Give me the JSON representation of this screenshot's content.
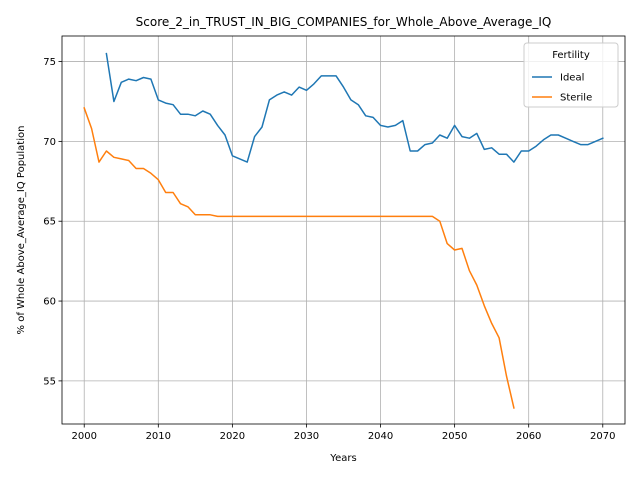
{
  "chart_data": {
    "type": "line",
    "title": "Score_2_in_TRUST_IN_BIG_COMPANIES_for_Whole_Above_Average_IQ",
    "xlabel": "Years",
    "ylabel": "% of Whole Above_Average_IQ Population",
    "xlim": [
      1997,
      2073
    ],
    "ylim": [
      52.3,
      76.6
    ],
    "xticks": [
      2000,
      2010,
      2020,
      2030,
      2040,
      2050,
      2060,
      2070
    ],
    "yticks": [
      55,
      60,
      65,
      70,
      75
    ],
    "grid": true,
    "legend": {
      "title": "Fertility",
      "placement": "top-right"
    },
    "series": [
      {
        "name": "Ideal",
        "color": "#1f77b4",
        "x": [
          2003,
          2004,
          2005,
          2006,
          2007,
          2008,
          2009,
          2010,
          2011,
          2012,
          2013,
          2014,
          2015,
          2016,
          2017,
          2018,
          2019,
          2020,
          2021,
          2022,
          2023,
          2024,
          2025,
          2026,
          2027,
          2028,
          2029,
          2030,
          2031,
          2032,
          2033,
          2034,
          2035,
          2036,
          2037,
          2038,
          2039,
          2040,
          2041,
          2042,
          2043,
          2044,
          2045,
          2046,
          2047,
          2048,
          2049,
          2050,
          2051,
          2052,
          2053,
          2054,
          2055,
          2056,
          2057,
          2058,
          2059,
          2060,
          2061,
          2062,
          2063,
          2064,
          2065,
          2066,
          2067,
          2068,
          2069,
          2070
        ],
        "y": [
          75.5,
          72.5,
          73.7,
          73.9,
          73.8,
          74.0,
          73.9,
          72.6,
          72.4,
          72.3,
          71.7,
          71.7,
          71.6,
          71.9,
          71.7,
          71.0,
          70.4,
          69.1,
          68.9,
          68.7,
          70.3,
          70.9,
          72.6,
          72.9,
          73.1,
          72.9,
          73.4,
          73.2,
          73.6,
          74.1,
          74.1,
          74.1,
          73.4,
          72.6,
          72.3,
          71.6,
          71.5,
          71.0,
          70.9,
          71.0,
          71.3,
          69.4,
          69.4,
          69.8,
          69.9,
          70.4,
          70.2,
          71.0,
          70.3,
          70.2,
          70.5,
          69.5,
          69.6,
          69.2,
          69.2,
          68.7,
          69.4,
          69.4,
          69.7,
          70.1,
          70.4,
          70.4,
          70.2,
          70.0,
          69.8,
          69.8,
          70.0,
          70.2
        ]
      },
      {
        "name": "Sterile",
        "color": "#ff7f0e",
        "x": [
          2000,
          2001,
          2002,
          2003,
          2004,
          2005,
          2006,
          2007,
          2008,
          2009,
          2010,
          2011,
          2012,
          2013,
          2014,
          2015,
          2016,
          2017,
          2018,
          2019,
          2020,
          2021,
          2022,
          2023,
          2024,
          2025,
          2026,
          2027,
          2028,
          2029,
          2030,
          2031,
          2032,
          2033,
          2034,
          2035,
          2036,
          2037,
          2038,
          2039,
          2040,
          2041,
          2042,
          2043,
          2044,
          2045,
          2046,
          2047,
          2048,
          2049,
          2050,
          2051,
          2052,
          2053,
          2054,
          2055,
          2056,
          2057,
          2058
        ],
        "y": [
          72.1,
          70.8,
          68.7,
          69.4,
          69.0,
          68.9,
          68.8,
          68.3,
          68.3,
          68.0,
          67.6,
          66.8,
          66.8,
          66.1,
          65.9,
          65.4,
          65.4,
          65.4,
          65.3,
          65.3,
          65.3,
          65.3,
          65.3,
          65.3,
          65.3,
          65.3,
          65.3,
          65.3,
          65.3,
          65.3,
          65.3,
          65.3,
          65.3,
          65.3,
          65.3,
          65.3,
          65.3,
          65.3,
          65.3,
          65.3,
          65.3,
          65.3,
          65.3,
          65.3,
          65.3,
          65.3,
          65.3,
          65.3,
          65.0,
          63.6,
          63.2,
          63.3,
          61.9,
          61.0,
          59.7,
          58.6,
          57.7,
          55.3,
          53.3
        ]
      }
    ]
  }
}
